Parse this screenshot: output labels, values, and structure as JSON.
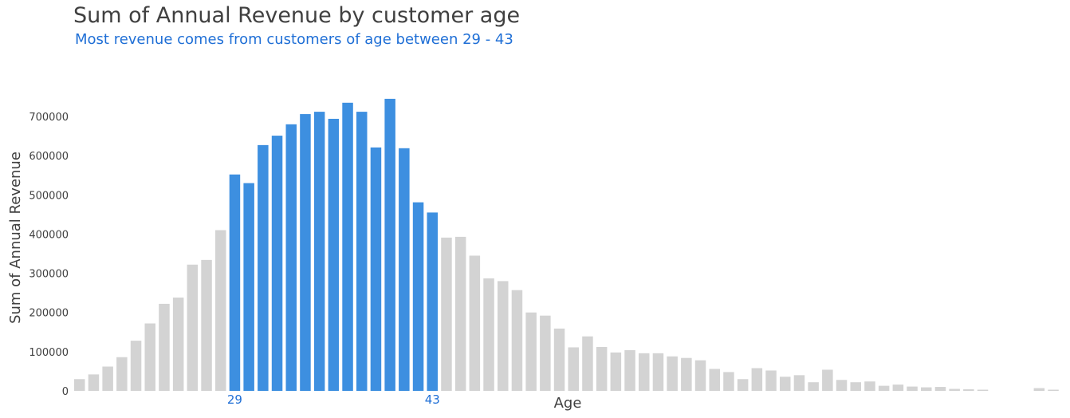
{
  "chart_data": {
    "type": "bar",
    "title": "Sum of Annual Revenue by customer age",
    "subtitle": "Most revenue comes from customers of age between 29 - 43",
    "xlabel": "Age",
    "ylabel": "Sum of Annual Revenue",
    "ylim": [
      0,
      760000
    ],
    "yticks": [
      0,
      100000,
      200000,
      300000,
      400000,
      500000,
      600000,
      700000
    ],
    "xtick_labels": [
      {
        "age": 29,
        "label": "29"
      },
      {
        "age": 43,
        "label": "43"
      }
    ],
    "highlight_range": [
      29,
      43
    ],
    "colors": {
      "highlight": "#3d8fe0",
      "base": "#d3d3d3",
      "subtitle": "#1f6fd6",
      "text": "#404040"
    },
    "grid": false,
    "x": [
      18,
      19,
      20,
      21,
      22,
      23,
      24,
      25,
      26,
      27,
      28,
      29,
      30,
      31,
      32,
      33,
      34,
      35,
      36,
      37,
      38,
      39,
      40,
      41,
      42,
      43,
      44,
      45,
      46,
      47,
      48,
      49,
      50,
      51,
      52,
      53,
      54,
      55,
      56,
      57,
      58,
      59,
      60,
      61,
      62,
      63,
      64,
      65,
      66,
      67,
      68,
      69,
      70,
      71,
      72,
      73,
      74,
      75,
      76,
      77,
      78,
      79,
      80,
      81,
      82,
      83,
      84,
      85,
      86,
      87,
      88,
      89
    ],
    "values": [
      30000,
      42000,
      62000,
      86000,
      128000,
      172000,
      222000,
      238000,
      322000,
      334000,
      410000,
      552000,
      530000,
      627000,
      651000,
      680000,
      706000,
      712000,
      694000,
      735000,
      712000,
      621000,
      745000,
      619000,
      481000,
      455000,
      391000,
      393000,
      345000,
      287000,
      280000,
      257000,
      200000,
      192000,
      159000,
      111000,
      139000,
      112000,
      98000,
      104000,
      96000,
      96000,
      88000,
      84000,
      78000,
      56000,
      48000,
      30000,
      58000,
      52000,
      36000,
      40000,
      22000,
      54000,
      28000,
      22000,
      24000,
      13000,
      16000,
      11000,
      9000,
      10000,
      5000,
      4000,
      3000,
      0,
      0,
      0,
      7000,
      3000,
      0,
      3000
    ]
  }
}
